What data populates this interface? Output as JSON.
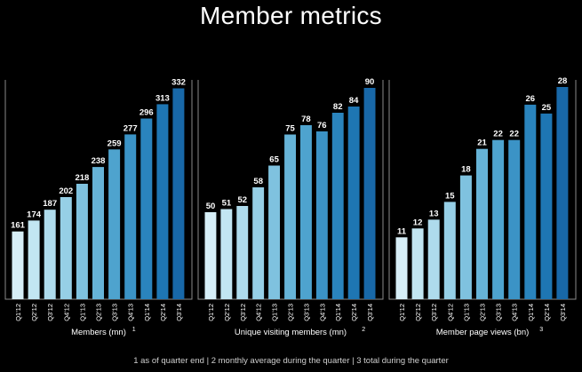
{
  "title": "Member metrics",
  "footnote": "1 as of quarter end | 2 monthly average during the quarter | 3 total during the quarter",
  "chart_data": [
    {
      "type": "bar",
      "xlabel": "Members (mn)",
      "footnote_ref": "1",
      "categories": [
        "Q1'12",
        "Q2'12",
        "Q3'12",
        "Q4'12",
        "Q1'13",
        "Q2'13",
        "Q3'13",
        "Q4'13",
        "Q1'14",
        "Q2'14",
        "Q3'14"
      ],
      "values": [
        161,
        174,
        187,
        202,
        218,
        238,
        259,
        277,
        296,
        313,
        332
      ],
      "ylim": [
        80,
        340
      ]
    },
    {
      "type": "bar",
      "xlabel": "Unique visiting members (mn)",
      "footnote_ref": "2",
      "categories": [
        "Q1'12",
        "Q2'12",
        "Q3'12",
        "Q4'12",
        "Q1'13",
        "Q2'13",
        "Q3'13",
        "Q4'13",
        "Q1'14",
        "Q2'14",
        "Q3'14"
      ],
      "values": [
        50,
        51,
        52,
        58,
        65,
        75,
        78,
        76,
        82,
        84,
        90
      ],
      "ylim": [
        22,
        92
      ]
    },
    {
      "type": "bar",
      "xlabel": "Member page views (bn)",
      "footnote_ref": "3",
      "categories": [
        "Q1'12",
        "Q2'12",
        "Q3'12",
        "Q4'12",
        "Q1'13",
        "Q2'13",
        "Q3'13",
        "Q4'13",
        "Q1'14",
        "Q2'14",
        "Q3'14"
      ],
      "values": [
        11,
        12,
        13,
        15,
        18,
        21,
        22,
        22,
        26,
        25,
        28
      ],
      "ylim": [
        4,
        28.6
      ]
    }
  ],
  "colors": {
    "bar_gradient": [
      "#d6eef7",
      "#c2e6f2",
      "#aedbec",
      "#96cfe6",
      "#7fc2df",
      "#66b3d7",
      "#4ea3ce",
      "#3b93c6",
      "#2a84bd",
      "#1e76b3",
      "#1868a8"
    ],
    "panel_border": "#8a8a8a"
  }
}
